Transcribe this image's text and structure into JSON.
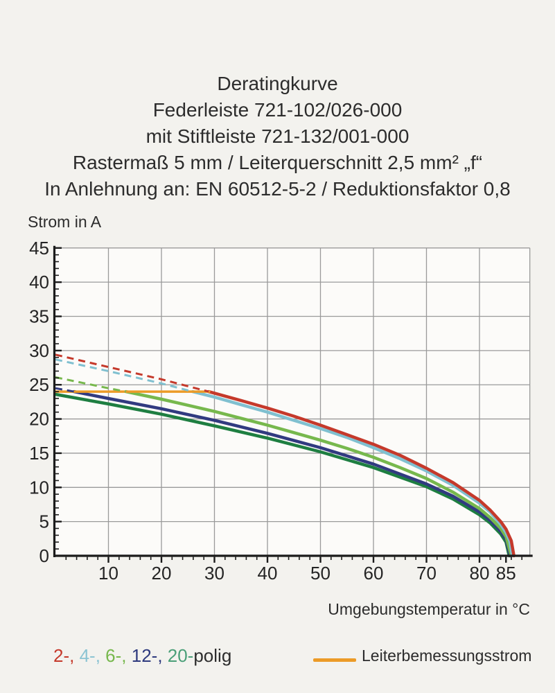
{
  "page": {
    "background": "#f3f2ee"
  },
  "title_block": {
    "lines": [
      "Deratingkurve",
      "Federleiste 721-102/026-000",
      "mit Stiftleiste 721-132/001-000",
      "Rastermaß 5 mm / Leiterquerschnitt 2,5 mm² „f“",
      "In Anlehnung an: EN 60512-5-2 / Reduktionsfaktor 0,8"
    ]
  },
  "axes": {
    "y_label": "Strom in A",
    "x_label": "Umgebungstemperatur in °C"
  },
  "legend": {
    "poles_parts": [
      {
        "text": "2-, ",
        "color": "#c5392b"
      },
      {
        "text": "4-, ",
        "color": "#8cc4d3"
      },
      {
        "text": "6-, ",
        "color": "#77b84d"
      },
      {
        "text": "12-, ",
        "color": "#2e3a7e"
      },
      {
        "text": "20-",
        "color": "#4a9f78"
      },
      {
        "text": "polig",
        "color": "#2d2d2d"
      }
    ],
    "rated": {
      "label": "Leiterbemessungsstrom",
      "color": "#ec9b27"
    }
  },
  "colors": {
    "grid": "#9a9a9a",
    "axis": "#1b1b1b",
    "tick_text": "#242424"
  },
  "chart_data": {
    "type": "line",
    "title": "Deratingkurve",
    "xlabel": "Umgebungstemperatur in °C",
    "ylabel": "Strom in A",
    "xlim": [
      0,
      89.5
    ],
    "ylim": [
      0,
      45
    ],
    "x_ticks_major": [
      10,
      20,
      30,
      40,
      50,
      60,
      70,
      80,
      85
    ],
    "x_grid": [
      10,
      20,
      30,
      40,
      50,
      60,
      70,
      80
    ],
    "y_ticks_major": [
      0,
      5,
      10,
      15,
      20,
      25,
      30,
      35,
      40,
      45
    ],
    "x_minor_step": 2,
    "y_minor_step": 1,
    "grid": true,
    "plot_background": "#fcfbf9",
    "rated_current_line": {
      "name": "Leiterbemessungsstrom",
      "value": 24,
      "t_start": 0,
      "t_end": 29,
      "color": "#ec9b27"
    },
    "series": [
      {
        "name": "20-polig",
        "color": "#1e7e41",
        "dashed_points": [],
        "solid_points": [
          [
            0,
            23.6
          ],
          [
            10,
            22.2
          ],
          [
            20,
            20.7
          ],
          [
            30,
            19.0
          ],
          [
            40,
            17.2
          ],
          [
            50,
            15.2
          ],
          [
            60,
            12.9
          ],
          [
            70,
            10.1
          ],
          [
            75,
            8.3
          ],
          [
            80,
            6.0
          ],
          [
            82,
            4.8
          ],
          [
            84,
            3.2
          ],
          [
            85,
            2.0
          ],
          [
            85.6,
            0
          ]
        ]
      },
      {
        "name": "12-polig",
        "color": "#313a80",
        "dashed_points": [
          [
            0,
            24.5
          ],
          [
            3.5,
            24
          ]
        ],
        "solid_points": [
          [
            3.5,
            24
          ],
          [
            10,
            23.0
          ],
          [
            20,
            21.5
          ],
          [
            30,
            19.8
          ],
          [
            40,
            17.9
          ],
          [
            50,
            15.8
          ],
          [
            60,
            13.4
          ],
          [
            70,
            10.5
          ],
          [
            75,
            8.7
          ],
          [
            80,
            6.4
          ],
          [
            82,
            5.2
          ],
          [
            84,
            3.6
          ],
          [
            85,
            2.4
          ],
          [
            85.8,
            0
          ]
        ]
      },
      {
        "name": "6-polig",
        "color": "#77b84d",
        "dashed_points": [
          [
            0,
            26.1
          ],
          [
            5,
            25.3
          ],
          [
            10,
            24.5
          ],
          [
            13.3,
            24
          ]
        ],
        "solid_points": [
          [
            13.3,
            24
          ],
          [
            20,
            22.9
          ],
          [
            25,
            22.0
          ],
          [
            30,
            21.1
          ],
          [
            35,
            20.1
          ],
          [
            40,
            19.1
          ],
          [
            45,
            18.0
          ],
          [
            50,
            16.9
          ],
          [
            55,
            15.7
          ],
          [
            60,
            14.4
          ],
          [
            65,
            12.9
          ],
          [
            70,
            11.3
          ],
          [
            75,
            9.3
          ],
          [
            80,
            6.9
          ],
          [
            82,
            5.6
          ],
          [
            84,
            4.0
          ],
          [
            85,
            2.8
          ],
          [
            86,
            0
          ]
        ]
      },
      {
        "name": "4-polig",
        "color": "#80c0d0",
        "dashed_points": [
          [
            0,
            28.7
          ],
          [
            10,
            27.0
          ],
          [
            20,
            25.2
          ],
          [
            25.9,
            24
          ]
        ],
        "solid_points": [
          [
            25.9,
            24
          ],
          [
            30,
            23.2
          ],
          [
            35,
            22.1
          ],
          [
            40,
            21.0
          ],
          [
            45,
            19.8
          ],
          [
            50,
            18.6
          ],
          [
            55,
            17.3
          ],
          [
            60,
            15.8
          ],
          [
            65,
            14.2
          ],
          [
            70,
            12.4
          ],
          [
            75,
            10.3
          ],
          [
            80,
            7.7
          ],
          [
            82,
            6.4
          ],
          [
            84,
            4.6
          ],
          [
            85,
            3.4
          ],
          [
            85.7,
            2.2
          ],
          [
            86.2,
            0
          ]
        ]
      },
      {
        "name": "2-polig",
        "color": "#c5392b",
        "dashed_points": [
          [
            0,
            29.4
          ],
          [
            10,
            27.6
          ],
          [
            20,
            25.8
          ],
          [
            28.9,
            24
          ]
        ],
        "solid_points": [
          [
            28.9,
            24
          ],
          [
            35,
            22.7
          ],
          [
            40,
            21.6
          ],
          [
            45,
            20.4
          ],
          [
            50,
            19.1
          ],
          [
            55,
            17.7
          ],
          [
            60,
            16.3
          ],
          [
            65,
            14.7
          ],
          [
            70,
            12.8
          ],
          [
            75,
            10.7
          ],
          [
            80,
            8.1
          ],
          [
            82,
            6.7
          ],
          [
            84,
            5.0
          ],
          [
            85,
            3.9
          ],
          [
            86,
            2.2
          ],
          [
            86.5,
            0
          ]
        ]
      }
    ]
  }
}
